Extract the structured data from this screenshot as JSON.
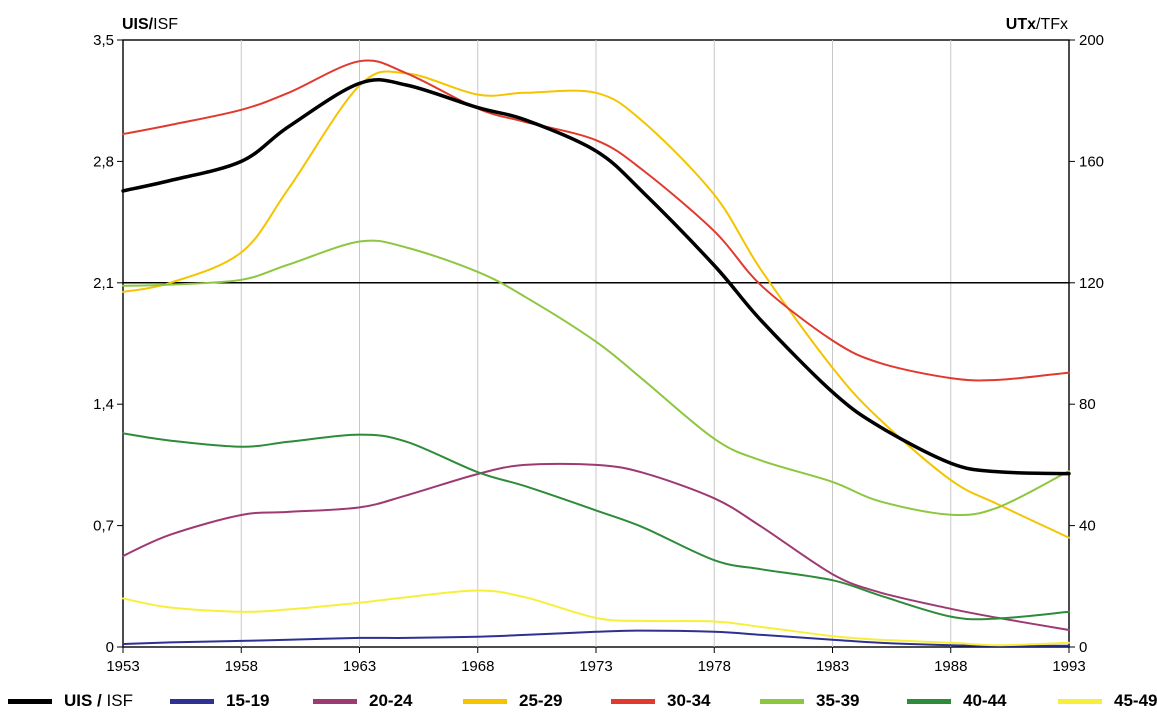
{
  "chart_data": {
    "type": "line",
    "left_axis_title": {
      "bold": "UIS/",
      "normal": "ISF"
    },
    "right_axis_title": {
      "bold": "UTx",
      "normal": "/TFx"
    },
    "x": [
      1953,
      1955,
      1958,
      1960,
      1963,
      1965,
      1968,
      1970,
      1973,
      1975,
      1978,
      1980,
      1983,
      1985,
      1988,
      1990,
      1993
    ],
    "x_ticks": [
      "1953",
      "1958",
      "1963",
      "1968",
      "1973",
      "1978",
      "1983",
      "1988",
      "1993"
    ],
    "xlim": [
      1953,
      1993
    ],
    "left_ticks": [
      "0",
      "0,7",
      "1,4",
      "2,1",
      "2,8",
      "3,5"
    ],
    "left_ylim": [
      0,
      3.5
    ],
    "right_ticks": [
      "0",
      "40",
      "80",
      "120",
      "160",
      "200"
    ],
    "right_ylim": [
      0,
      200
    ],
    "reference_line": {
      "axis": "left",
      "value": 2.1
    },
    "series": [
      {
        "name": "UIS / ISF",
        "axis": "left",
        "color": "#000000",
        "width": 3.5,
        "values": [
          2.63,
          2.69,
          2.8,
          3.0,
          3.25,
          3.24,
          3.11,
          3.04,
          2.86,
          2.62,
          2.2,
          1.88,
          1.47,
          1.27,
          1.06,
          1.01,
          1.0
        ]
      },
      {
        "name": "15-19",
        "axis": "right",
        "color": "#2e3192",
        "width": 2,
        "values": [
          1.0,
          1.5,
          2.0,
          2.4,
          3.0,
          3.0,
          3.4,
          4.0,
          5.0,
          5.4,
          5.0,
          4.0,
          2.4,
          1.4,
          0.6,
          0.4,
          0.4
        ]
      },
      {
        "name": "20-24",
        "axis": "right",
        "color": "#9e3a72",
        "width": 2,
        "values": [
          30,
          37,
          43.5,
          44.5,
          46,
          50,
          57,
          60,
          60,
          57.4,
          49,
          39.6,
          24,
          18,
          12.6,
          9.6,
          5.6
        ]
      },
      {
        "name": "25-29",
        "axis": "right",
        "color": "#f5c400",
        "width": 2,
        "values": [
          117,
          120,
          130,
          151,
          185,
          189,
          182,
          182.6,
          182.6,
          173,
          149,
          124,
          92,
          75,
          55,
          47,
          36
        ]
      },
      {
        "name": "30-34",
        "axis": "right",
        "color": "#e03a2f",
        "width": 2,
        "values": [
          169,
          172,
          177,
          182.6,
          193,
          189,
          177.4,
          173,
          167,
          157,
          137,
          119,
          101,
          93.6,
          88.6,
          88,
          90.4
        ]
      },
      {
        "name": "35-39",
        "axis": "right",
        "color": "#8dc63f",
        "width": 2,
        "values": [
          119,
          119.4,
          121,
          126,
          133.6,
          131.6,
          123.6,
          115.4,
          100.6,
          88,
          68.6,
          61.4,
          54.4,
          48,
          43.6,
          46,
          58
        ]
      },
      {
        "name": "40-44",
        "axis": "right",
        "color": "#2e8b3a",
        "width": 2,
        "values": [
          70.4,
          68,
          66,
          67.6,
          70,
          67.6,
          57.6,
          53,
          45,
          39.4,
          28.6,
          25.6,
          22,
          17,
          10,
          9.4,
          11.6
        ]
      },
      {
        "name": "45-49",
        "axis": "right",
        "color": "#f7ef3a",
        "width": 2,
        "values": [
          16,
          13,
          11.6,
          12.4,
          14.6,
          16.4,
          18.6,
          16.4,
          9.6,
          8.6,
          8.4,
          6.6,
          3.6,
          2.4,
          1.4,
          0.6,
          1.4
        ]
      }
    ],
    "legend_position": "bottom",
    "grid": "vertical"
  }
}
